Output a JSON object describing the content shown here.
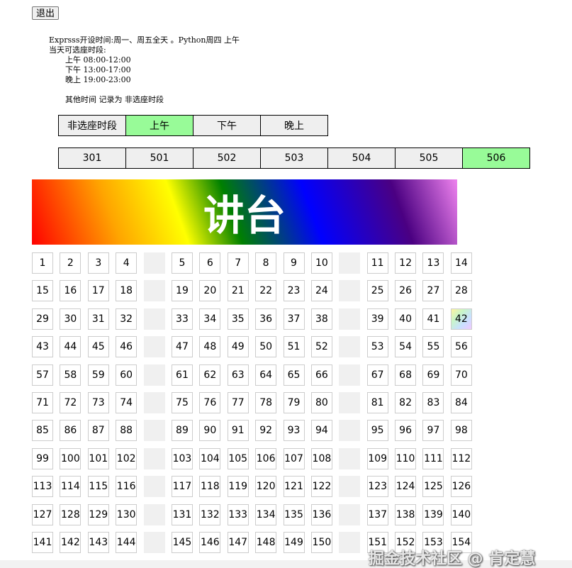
{
  "exit_label": "退出",
  "info": {
    "line1": "Exprsss开设时间:周一、周五全天 。Python周四 上午",
    "line2": "当天可选座时段:",
    "slots": [
      "上午 08:00-12:00",
      "下午 13:00-17:00",
      "晚上 19:00-23:00"
    ],
    "other": "其他时间 记录为 非选座时段"
  },
  "time_tabs": [
    {
      "label": "非选座时段",
      "selected": false
    },
    {
      "label": "上午",
      "selected": true
    },
    {
      "label": "下午",
      "selected": false
    },
    {
      "label": "晚上",
      "selected": false
    }
  ],
  "rooms": [
    {
      "label": "301",
      "selected": false
    },
    {
      "label": "501",
      "selected": false
    },
    {
      "label": "502",
      "selected": false
    },
    {
      "label": "503",
      "selected": false
    },
    {
      "label": "504",
      "selected": false
    },
    {
      "label": "505",
      "selected": false
    },
    {
      "label": "506",
      "selected": true
    }
  ],
  "selected_color": "#98fb98",
  "podium_label": "讲台",
  "seats": {
    "rows": [
      [
        1,
        2,
        3,
        4,
        5,
        6,
        7,
        8,
        9,
        10,
        11,
        12,
        13,
        14
      ],
      [
        15,
        16,
        17,
        18,
        19,
        20,
        21,
        22,
        23,
        24,
        25,
        26,
        27,
        28
      ],
      [
        29,
        30,
        31,
        32,
        33,
        34,
        35,
        36,
        37,
        38,
        39,
        40,
        41,
        42
      ],
      [
        43,
        44,
        45,
        46,
        47,
        48,
        49,
        50,
        51,
        52,
        53,
        54,
        55,
        56
      ],
      [
        57,
        58,
        59,
        60,
        61,
        62,
        63,
        64,
        65,
        66,
        67,
        68,
        69,
        70
      ],
      [
        71,
        72,
        73,
        74,
        75,
        76,
        77,
        78,
        79,
        80,
        81,
        82,
        83,
        84
      ],
      [
        85,
        86,
        87,
        88,
        89,
        90,
        91,
        92,
        93,
        94,
        95,
        96,
        97,
        98
      ],
      [
        99,
        100,
        101,
        102,
        103,
        104,
        105,
        106,
        107,
        108,
        109,
        110,
        111,
        112
      ],
      [
        113,
        114,
        115,
        116,
        117,
        118,
        119,
        120,
        121,
        122,
        123,
        124,
        125,
        126
      ],
      [
        127,
        128,
        129,
        130,
        131,
        132,
        133,
        134,
        135,
        136,
        137,
        138,
        139,
        140
      ],
      [
        141,
        142,
        143,
        144,
        145,
        146,
        147,
        148,
        149,
        150,
        151,
        152,
        153,
        154
      ]
    ],
    "selected": [
      42
    ]
  },
  "watermark": "掘金技术社区 @ 肯定慧"
}
